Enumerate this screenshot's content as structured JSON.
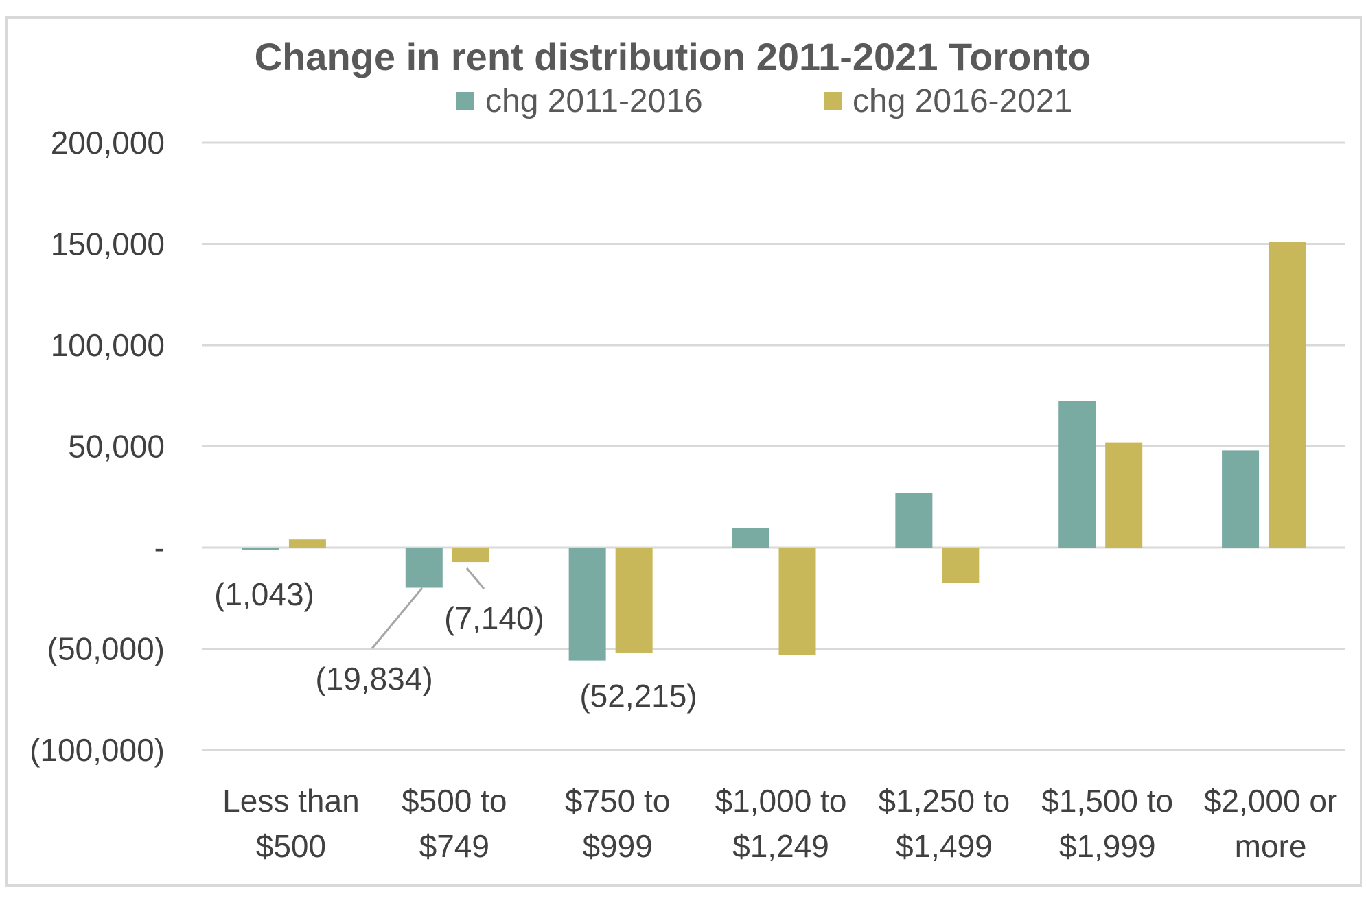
{
  "chart_data": {
    "type": "bar",
    "title": "Change in rent distribution 2011-2021 Toronto",
    "categories": [
      [
        "Less than",
        "$500"
      ],
      [
        "$500 to",
        "$749"
      ],
      [
        "$750 to",
        "$999"
      ],
      [
        "$1,000 to",
        "$1,249"
      ],
      [
        "$1,250 to",
        "$1,499"
      ],
      [
        "$1,500 to",
        "$1,999"
      ],
      [
        "$2,000 or",
        "more"
      ]
    ],
    "series": [
      {
        "name": "chg 2011-2016",
        "color": "#7aaba3",
        "values": [
          -1043,
          -19834,
          -55800,
          9500,
          27000,
          72500,
          48000
        ]
      },
      {
        "name": "chg 2016-2021",
        "color": "#c9b85a",
        "values": [
          4000,
          -7140,
          -52215,
          -53000,
          -17500,
          52000,
          151000
        ]
      }
    ],
    "ylim": [
      -100000,
      200000
    ],
    "yticks": [
      {
        "value": 200000,
        "label": "200,000"
      },
      {
        "value": 150000,
        "label": "150,000"
      },
      {
        "value": 100000,
        "label": "100,000"
      },
      {
        "value": 50000,
        "label": "50,000"
      },
      {
        "value": 0,
        "label": "-"
      },
      {
        "value": -50000,
        "label": "(50,000)"
      },
      {
        "value": -100000,
        "label": "(100,000)"
      }
    ],
    "data_labels": [
      {
        "series": 0,
        "category": 0,
        "text": "(1,043)"
      },
      {
        "series": 0,
        "category": 1,
        "text": "(19,834)"
      },
      {
        "series": 1,
        "category": 1,
        "text": "(7,140)"
      },
      {
        "series": 1,
        "category": 2,
        "text": "(52,215)"
      }
    ],
    "grid": true,
    "legend": "top"
  }
}
